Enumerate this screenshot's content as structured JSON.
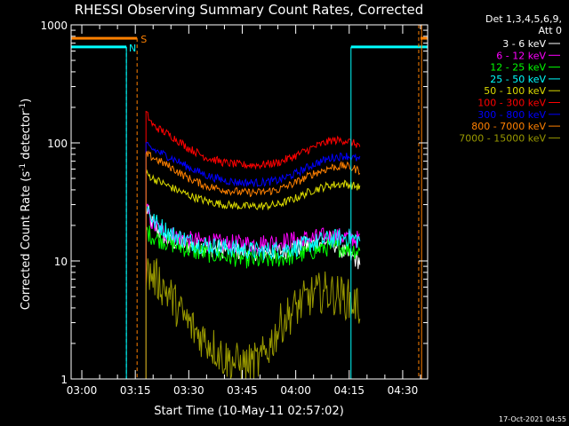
{
  "chart_data": {
    "type": "line",
    "title": "RHESSI Observing Summary Count Rates, Corrected",
    "xlabel": "Start Time (10-May-11 02:57:02)",
    "ylabel": "Corrected Count Rate (s",
    "ylabel_sup1": "-1",
    "ylabel_mid": " detector",
    "ylabel_sup2": "-1",
    "ylabel_end": ")",
    "y_scale": "log",
    "ylim": [
      1,
      1000
    ],
    "xlim_minutes": [
      57,
      157
    ],
    "x_ticks": [
      {
        "min": 60,
        "label": "03:00"
      },
      {
        "min": 75,
        "label": "03:15"
      },
      {
        "min": 90,
        "label": "03:30"
      },
      {
        "min": 105,
        "label": "03:45"
      },
      {
        "min": 120,
        "label": "04:00"
      },
      {
        "min": 135,
        "label": "04:15"
      },
      {
        "min": 150,
        "label": "04:30"
      }
    ],
    "y_ticks": [
      {
        "value": 1,
        "label": "1"
      },
      {
        "value": 10,
        "label": "10"
      },
      {
        "value": 100,
        "label": "100"
      },
      {
        "value": 1000,
        "label": "1000"
      }
    ],
    "legend_header": [
      "Det 1,3,4,5,6,9,",
      "Att 0"
    ],
    "legend_position": "right",
    "date_stamp": "17-Oct-2021 04:55",
    "series": [
      {
        "name": "3 - 6 keV",
        "color": "#ffffff",
        "values": [
          [
            78,
            28
          ],
          [
            80,
            20
          ],
          [
            84,
            15
          ],
          [
            88,
            14
          ],
          [
            95,
            13
          ],
          [
            105,
            12
          ],
          [
            115,
            12
          ],
          [
            125,
            14
          ],
          [
            130,
            15
          ],
          [
            133,
            12
          ],
          [
            135,
            11
          ],
          [
            138,
            10
          ]
        ]
      },
      {
        "name": "6 - 12 keV",
        "color": "#ff00ff",
        "values": [
          [
            78,
            28
          ],
          [
            80,
            20
          ],
          [
            84,
            17
          ],
          [
            90,
            15
          ],
          [
            100,
            14
          ],
          [
            110,
            14
          ],
          [
            120,
            15
          ],
          [
            128,
            16
          ],
          [
            134,
            16
          ],
          [
            138,
            15
          ]
        ]
      },
      {
        "name": "12 - 25 keV",
        "color": "#00ff00",
        "values": [
          [
            78,
            18
          ],
          [
            80,
            16
          ],
          [
            85,
            14
          ],
          [
            92,
            12
          ],
          [
            100,
            11
          ],
          [
            110,
            10
          ],
          [
            120,
            11
          ],
          [
            128,
            13
          ],
          [
            134,
            13
          ],
          [
            138,
            12
          ]
        ]
      },
      {
        "name": "25 - 50 keV",
        "color": "#00ffff",
        "values": [
          [
            78,
            30
          ],
          [
            80,
            22
          ],
          [
            85,
            17
          ],
          [
            92,
            14
          ],
          [
            100,
            13
          ],
          [
            110,
            12
          ],
          [
            120,
            13
          ],
          [
            128,
            15
          ],
          [
            134,
            16
          ],
          [
            138,
            15
          ]
        ]
      },
      {
        "name": "50 - 100 keV",
        "color": "#dddd00",
        "values": [
          [
            78,
            55
          ],
          [
            80,
            50
          ],
          [
            85,
            42
          ],
          [
            90,
            36
          ],
          [
            95,
            32
          ],
          [
            100,
            30
          ],
          [
            105,
            29
          ],
          [
            110,
            29
          ],
          [
            115,
            30
          ],
          [
            120,
            34
          ],
          [
            125,
            40
          ],
          [
            130,
            44
          ],
          [
            134,
            45
          ],
          [
            138,
            42
          ]
        ]
      },
      {
        "name": "100 - 300 keV",
        "color": "#ff0000",
        "values": [
          [
            78,
            180
          ],
          [
            80,
            140
          ],
          [
            85,
            115
          ],
          [
            90,
            90
          ],
          [
            95,
            75
          ],
          [
            100,
            68
          ],
          [
            105,
            65
          ],
          [
            110,
            65
          ],
          [
            115,
            68
          ],
          [
            120,
            78
          ],
          [
            125,
            92
          ],
          [
            130,
            105
          ],
          [
            134,
            105
          ],
          [
            138,
            95
          ]
        ]
      },
      {
        "name": "300 - 800 keV",
        "color": "#0000ff",
        "values": [
          [
            78,
            95
          ],
          [
            80,
            88
          ],
          [
            85,
            75
          ],
          [
            90,
            62
          ],
          [
            95,
            53
          ],
          [
            100,
            48
          ],
          [
            105,
            46
          ],
          [
            110,
            46
          ],
          [
            115,
            48
          ],
          [
            120,
            55
          ],
          [
            125,
            66
          ],
          [
            130,
            75
          ],
          [
            134,
            78
          ],
          [
            138,
            72
          ]
        ]
      },
      {
        "name": "800 - 7000 keV",
        "color": "#ff8000",
        "values": [
          [
            78,
            80
          ],
          [
            80,
            75
          ],
          [
            85,
            62
          ],
          [
            90,
            50
          ],
          [
            95,
            43
          ],
          [
            100,
            40
          ],
          [
            105,
            38
          ],
          [
            110,
            38
          ],
          [
            115,
            40
          ],
          [
            120,
            46
          ],
          [
            125,
            55
          ],
          [
            130,
            62
          ],
          [
            134,
            64
          ],
          [
            138,
            58
          ]
        ]
      },
      {
        "name": "7000 - 15000 keV",
        "color": "#999900",
        "values": [
          [
            78,
            8
          ],
          [
            80,
            7.5
          ],
          [
            82,
            6.5
          ],
          [
            85,
            5
          ],
          [
            88,
            3.5
          ],
          [
            92,
            2.5
          ],
          [
            96,
            2
          ],
          [
            100,
            1.5
          ],
          [
            105,
            1.3
          ],
          [
            110,
            1.4
          ],
          [
            113,
            2
          ],
          [
            116,
            3
          ],
          [
            120,
            4
          ],
          [
            124,
            5
          ],
          [
            128,
            5.5
          ],
          [
            133,
            5
          ],
          [
            136,
            4.5
          ],
          [
            138,
            4
          ]
        ]
      }
    ],
    "flags": [
      {
        "label": "S",
        "color": "#ff8000"
      },
      {
        "label": "N",
        "color": "#00ffff"
      }
    ]
  }
}
